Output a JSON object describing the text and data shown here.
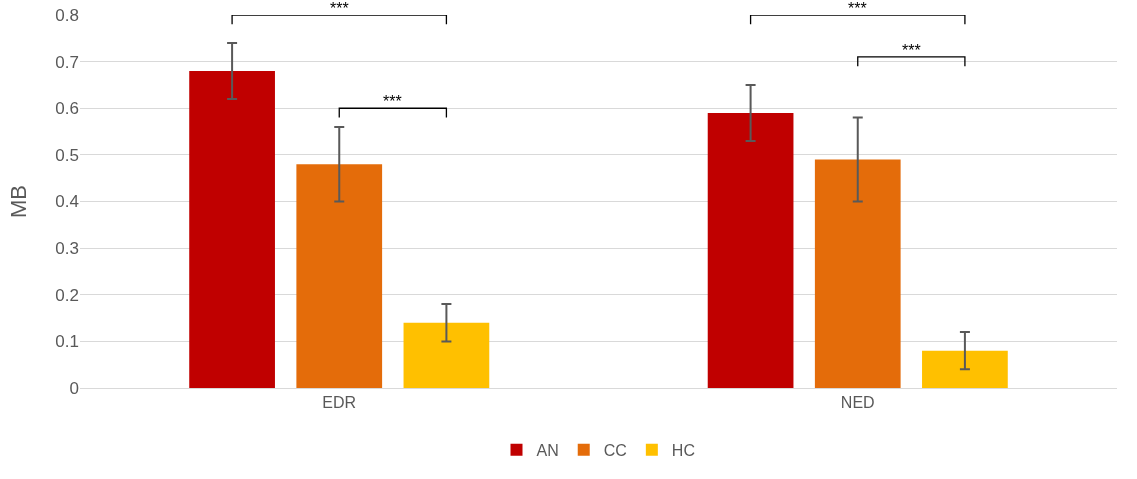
{
  "chart_data": {
    "type": "bar",
    "ylabel": "MB",
    "categories": [
      "EDR",
      "NED"
    ],
    "series": [
      {
        "name": "AN",
        "color": "#c00000",
        "values": [
          0.68,
          0.59
        ],
        "errors": [
          0.06,
          0.06
        ]
      },
      {
        "name": "CC",
        "color": "#e46c0a",
        "values": [
          0.48,
          0.49
        ],
        "errors": [
          0.08,
          0.09
        ]
      },
      {
        "name": "HC",
        "color": "#ffc000",
        "values": [
          0.14,
          0.08
        ],
        "errors": [
          0.04,
          0.04
        ]
      }
    ],
    "ylim": [
      0,
      0.8
    ],
    "yticks": [
      0,
      0.1,
      0.2,
      0.3,
      0.4,
      0.5,
      0.6,
      0.7,
      0.8
    ],
    "grid": "y",
    "legend": "bottom",
    "annotations": [
      "***",
      "***",
      "***",
      "***"
    ]
  }
}
